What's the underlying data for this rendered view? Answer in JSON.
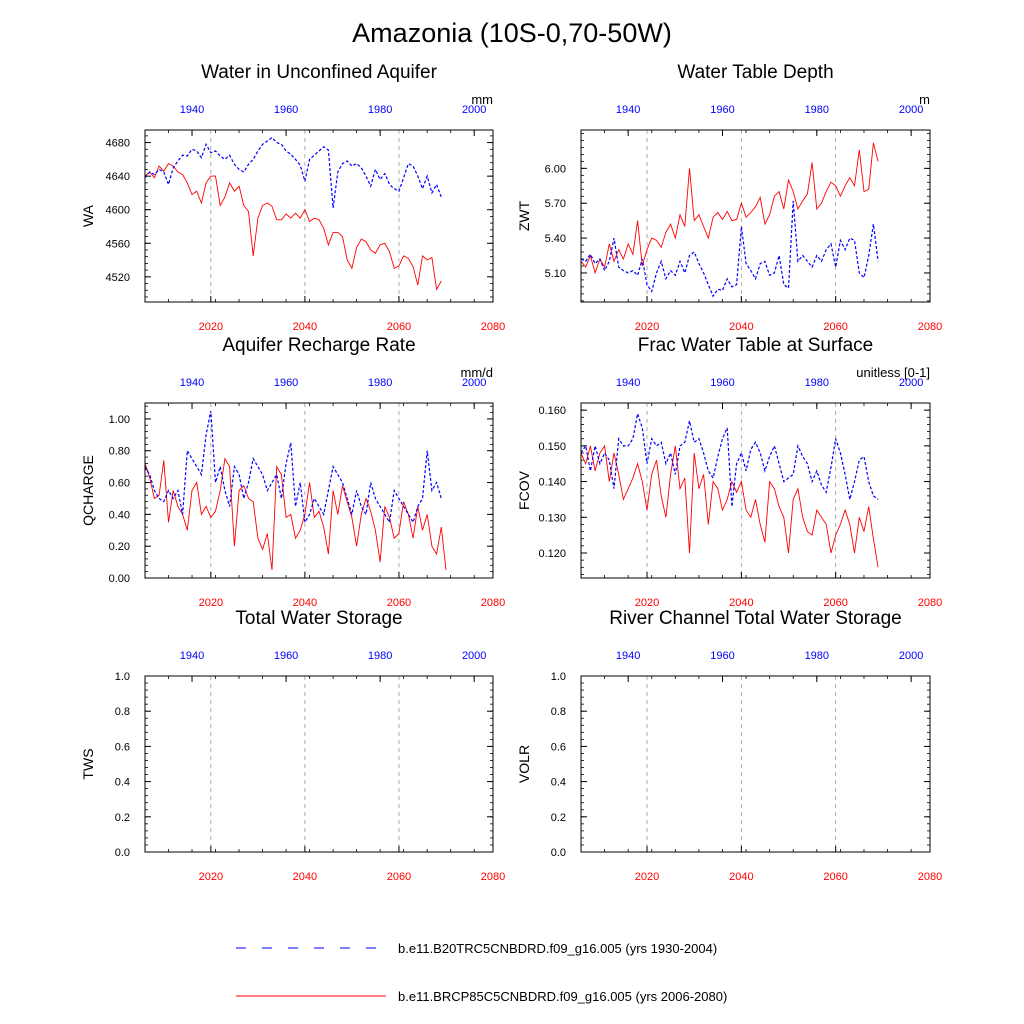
{
  "figure": {
    "title": "Amazonia (10S-0,70-50W)",
    "colors": {
      "top_series": "#0000ff",
      "bottom_series": "#ff0000",
      "axis": "#000000",
      "grid": "#999999"
    },
    "legend": [
      {
        "label": "b.e11.B20TRC5CNBDRD.f09_g16.005 (yrs 1930-2004)",
        "style": "dashed",
        "color": "#0000ff"
      },
      {
        "label": "b.e11.BRCP85C5CNBDRD.f09_g16.005 (yrs 2006-2080)",
        "style": "solid",
        "color": "#ff0000"
      }
    ]
  },
  "chart_data": [
    {
      "type": "line",
      "title": "Water in Unconfined Aquifer",
      "ylabel": "WA",
      "units": "mm",
      "ylim": [
        4490,
        4695
      ],
      "yticks": [
        4520,
        4560,
        4600,
        4640,
        4680
      ],
      "bottom_axis": {
        "range": [
          2006,
          2080
        ],
        "ticks": [
          2020,
          2040,
          2060,
          2080
        ]
      },
      "top_axis": {
        "range": [
          1930,
          2004
        ],
        "ticks": [
          1940,
          1960,
          1980,
          2000
        ]
      },
      "grid_x": [
        2020,
        2040,
        2060
      ],
      "series": [
        {
          "name": "b.e11.BRCP85C5CNBDRD.f09_g16.005",
          "axis": "bottom",
          "x_start": 2006,
          "values": [
            4640,
            4645,
            4638,
            4652,
            4646,
            4655,
            4652,
            4645,
            4642,
            4632,
            4618,
            4622,
            4608,
            4632,
            4640,
            4640,
            4605,
            4615,
            4632,
            4622,
            4628,
            4605,
            4598,
            4545,
            4590,
            4605,
            4608,
            4604,
            4588,
            4588,
            4595,
            4590,
            4596,
            4590,
            4600,
            4586,
            4590,
            4588,
            4578,
            4558,
            4573,
            4573,
            4568,
            4540,
            4530,
            4555,
            4565,
            4562,
            4552,
            4548,
            4558,
            4560,
            4550,
            4530,
            4533,
            4545,
            4542,
            4532,
            4510,
            4545,
            4540,
            4543,
            4505,
            4515
          ]
        },
        {
          "name": "b.e11.B20TRC5CNBDRD.f09_g16.005",
          "axis": "top",
          "x_start": 1930,
          "values": [
            4638,
            4645,
            4642,
            4648,
            4645,
            4630,
            4650,
            4658,
            4665,
            4664,
            4672,
            4670,
            4662,
            4678,
            4668,
            4670,
            4664,
            4660,
            4665,
            4654,
            4648,
            4645,
            4654,
            4660,
            4670,
            4678,
            4682,
            4686,
            4680,
            4678,
            4670,
            4666,
            4660,
            4653,
            4634,
            4660,
            4665,
            4670,
            4675,
            4671,
            4602,
            4645,
            4655,
            4658,
            4652,
            4655,
            4650,
            4640,
            4628,
            4648,
            4636,
            4643,
            4630,
            4625,
            4622,
            4638,
            4655,
            4652,
            4640,
            4625,
            4640,
            4620,
            4630,
            4615
          ]
        }
      ]
    },
    {
      "type": "line",
      "title": "Water Table Depth",
      "ylabel": "ZWT",
      "units": "m",
      "ylim": [
        4.85,
        6.33
      ],
      "yticks": [
        5.1,
        5.4,
        5.7,
        6.0
      ],
      "bottom_axis": {
        "range": [
          2006,
          2080
        ],
        "ticks": [
          2020,
          2040,
          2060,
          2080
        ]
      },
      "top_axis": {
        "range": [
          1930,
          2004
        ],
        "ticks": [
          1940,
          1960,
          1980,
          2000
        ]
      },
      "grid_x": [
        2020,
        2040,
        2060
      ],
      "series": [
        {
          "name": "b.e11.BRCP85C5CNBDRD.f09_g16.005",
          "axis": "bottom",
          "x_start": 2006,
          "values": [
            5.2,
            5.15,
            5.25,
            5.1,
            5.22,
            5.15,
            5.35,
            5.2,
            5.3,
            5.22,
            5.35,
            5.26,
            5.55,
            5.16,
            5.3,
            5.4,
            5.38,
            5.32,
            5.45,
            5.52,
            5.4,
            5.6,
            5.5,
            6.0,
            5.55,
            5.6,
            5.5,
            5.4,
            5.58,
            5.62,
            5.56,
            5.63,
            5.55,
            5.56,
            5.7,
            5.58,
            5.62,
            5.67,
            5.75,
            5.52,
            5.6,
            5.76,
            5.8,
            5.65,
            5.9,
            5.8,
            5.65,
            5.72,
            5.78,
            6.05,
            5.65,
            5.7,
            5.8,
            5.88,
            5.85,
            5.76,
            5.85,
            5.92,
            5.85,
            6.16,
            5.8,
            5.82,
            6.22,
            6.06
          ]
        },
        {
          "name": "b.e11.B20TRC5CNBDRD.f09_g16.005",
          "axis": "top",
          "x_start": 1930,
          "values": [
            5.22,
            5.2,
            5.26,
            5.18,
            5.22,
            5.12,
            5.2,
            5.4,
            5.15,
            5.12,
            5.1,
            5.12,
            5.08,
            5.22,
            5.0,
            4.94,
            5.1,
            5.2,
            5.05,
            5.12,
            5.08,
            5.2,
            5.1,
            5.25,
            5.28,
            5.18,
            5.1,
            5.0,
            4.9,
            4.96,
            4.95,
            5.05,
            4.98,
            5.0,
            5.5,
            5.18,
            5.12,
            5.05,
            5.18,
            5.2,
            5.08,
            5.1,
            5.25,
            5.0,
            4.97,
            5.72,
            5.2,
            5.25,
            5.2,
            5.15,
            5.25,
            5.2,
            5.3,
            5.35,
            5.15,
            5.38,
            5.3,
            5.4,
            5.38,
            5.1,
            5.06,
            5.25,
            5.52,
            5.2
          ]
        }
      ]
    },
    {
      "type": "line",
      "title": "Aquifer Recharge Rate",
      "ylabel": "QCHARGE",
      "units": "mm/d",
      "ylim": [
        0.0,
        1.1
      ],
      "yticks": [
        0.0,
        0.2,
        0.4,
        0.6,
        0.8,
        1.0
      ],
      "bottom_axis": {
        "range": [
          2006,
          2080
        ],
        "ticks": [
          2020,
          2040,
          2060,
          2080
        ]
      },
      "top_axis": {
        "range": [
          1930,
          2004
        ],
        "ticks": [
          1940,
          1960,
          1980,
          2000
        ]
      },
      "grid_x": [
        2020,
        2040,
        2060
      ],
      "series": [
        {
          "name": "b.e11.BRCP85C5CNBDRD.f09_g16.005",
          "axis": "bottom",
          "x_start": 2006,
          "values": [
            0.72,
            0.63,
            0.5,
            0.52,
            0.74,
            0.35,
            0.55,
            0.45,
            0.4,
            0.3,
            0.55,
            0.6,
            0.4,
            0.45,
            0.38,
            0.42,
            0.55,
            0.75,
            0.7,
            0.2,
            0.55,
            0.58,
            0.5,
            0.48,
            0.25,
            0.18,
            0.28,
            0.05,
            0.7,
            0.65,
            0.38,
            0.4,
            0.25,
            0.3,
            0.4,
            0.6,
            0.38,
            0.42,
            0.32,
            0.15,
            0.55,
            0.4,
            0.58,
            0.48,
            0.38,
            0.2,
            0.4,
            0.5,
            0.42,
            0.3,
            0.1,
            0.45,
            0.38,
            0.25,
            0.28,
            0.48,
            0.4,
            0.25,
            0.45,
            0.3,
            0.4,
            0.2,
            0.15,
            0.32,
            0.05
          ]
        },
        {
          "name": "b.e11.B20TRC5CNBDRD.f09_g16.005",
          "axis": "top",
          "x_start": 1930,
          "values": [
            0.7,
            0.65,
            0.55,
            0.5,
            0.48,
            0.55,
            0.5,
            0.55,
            0.4,
            0.8,
            0.75,
            0.7,
            0.65,
            0.9,
            1.05,
            0.6,
            0.7,
            0.55,
            0.45,
            0.7,
            0.65,
            0.5,
            0.6,
            0.75,
            0.7,
            0.65,
            0.55,
            0.6,
            0.65,
            0.5,
            0.72,
            0.85,
            0.45,
            0.6,
            0.35,
            0.4,
            0.5,
            0.45,
            0.4,
            0.55,
            0.7,
            0.65,
            0.6,
            0.5,
            0.4,
            0.55,
            0.45,
            0.4,
            0.6,
            0.5,
            0.45,
            0.4,
            0.35,
            0.55,
            0.5,
            0.45,
            0.4,
            0.35,
            0.45,
            0.5,
            0.8,
            0.55,
            0.6,
            0.5
          ]
        }
      ]
    },
    {
      "type": "line",
      "title": "Frac Water Table at Surface",
      "ylabel": "FCOV",
      "units": "unitless [0-1]",
      "ylim": [
        0.113,
        0.162
      ],
      "yticks": [
        0.12,
        0.13,
        0.14,
        0.15,
        0.16
      ],
      "bottom_axis": {
        "range": [
          2006,
          2080
        ],
        "ticks": [
          2020,
          2040,
          2060,
          2080
        ]
      },
      "top_axis": {
        "range": [
          1930,
          2004
        ],
        "ticks": [
          1940,
          1960,
          1980,
          2000
        ]
      },
      "grid_x": [
        2020,
        2040,
        2060
      ],
      "series": [
        {
          "name": "b.e11.BRCP85C5CNBDRD.f09_g16.005",
          "axis": "bottom",
          "x_start": 2006,
          "values": [
            0.148,
            0.145,
            0.15,
            0.143,
            0.148,
            0.15,
            0.14,
            0.148,
            0.142,
            0.135,
            0.138,
            0.141,
            0.145,
            0.14,
            0.132,
            0.142,
            0.146,
            0.136,
            0.13,
            0.142,
            0.15,
            0.138,
            0.141,
            0.12,
            0.148,
            0.138,
            0.142,
            0.128,
            0.14,
            0.138,
            0.132,
            0.135,
            0.14,
            0.137,
            0.14,
            0.132,
            0.13,
            0.135,
            0.128,
            0.123,
            0.14,
            0.138,
            0.133,
            0.13,
            0.12,
            0.135,
            0.138,
            0.13,
            0.126,
            0.125,
            0.132,
            0.13,
            0.128,
            0.12,
            0.125,
            0.128,
            0.132,
            0.128,
            0.12,
            0.13,
            0.126,
            0.133,
            0.124,
            0.116
          ]
        },
        {
          "name": "b.e11.B20TRC5CNBDRD.f09_g16.005",
          "axis": "top",
          "x_start": 1930,
          "values": [
            0.148,
            0.15,
            0.143,
            0.15,
            0.145,
            0.148,
            0.146,
            0.138,
            0.152,
            0.15,
            0.15,
            0.152,
            0.159,
            0.155,
            0.145,
            0.152,
            0.15,
            0.151,
            0.145,
            0.148,
            0.142,
            0.15,
            0.151,
            0.157,
            0.151,
            0.152,
            0.148,
            0.143,
            0.141,
            0.147,
            0.152,
            0.155,
            0.133,
            0.145,
            0.148,
            0.143,
            0.149,
            0.151,
            0.148,
            0.143,
            0.147,
            0.15,
            0.145,
            0.14,
            0.141,
            0.142,
            0.15,
            0.147,
            0.145,
            0.14,
            0.143,
            0.139,
            0.137,
            0.144,
            0.152,
            0.148,
            0.142,
            0.135,
            0.14,
            0.146,
            0.147,
            0.14,
            0.136,
            0.135
          ]
        }
      ]
    },
    {
      "type": "line",
      "title": "Total Water Storage",
      "ylabel": "TWS",
      "units": "",
      "ylim": [
        0.0,
        1.0
      ],
      "yticks": [
        0.0,
        0.2,
        0.4,
        0.6,
        0.8,
        1.0
      ],
      "bottom_axis": {
        "range": [
          2006,
          2080
        ],
        "ticks": [
          2020,
          2040,
          2060,
          2080
        ]
      },
      "top_axis": {
        "range": [
          1930,
          2004
        ],
        "ticks": [
          1940,
          1960,
          1980,
          2000
        ]
      },
      "grid_x": [
        2020,
        2040,
        2060
      ],
      "series": []
    },
    {
      "type": "line",
      "title": "River Channel Total Water Storage",
      "ylabel": "VOLR",
      "units": "",
      "ylim": [
        0.0,
        1.0
      ],
      "yticks": [
        0.0,
        0.2,
        0.4,
        0.6,
        0.8,
        1.0
      ],
      "bottom_axis": {
        "range": [
          2006,
          2080
        ],
        "ticks": [
          2020,
          2040,
          2060,
          2080
        ]
      },
      "top_axis": {
        "range": [
          1930,
          2004
        ],
        "ticks": [
          1940,
          1960,
          1980,
          2000
        ]
      },
      "grid_x": [
        2020,
        2040,
        2060
      ],
      "series": []
    }
  ]
}
